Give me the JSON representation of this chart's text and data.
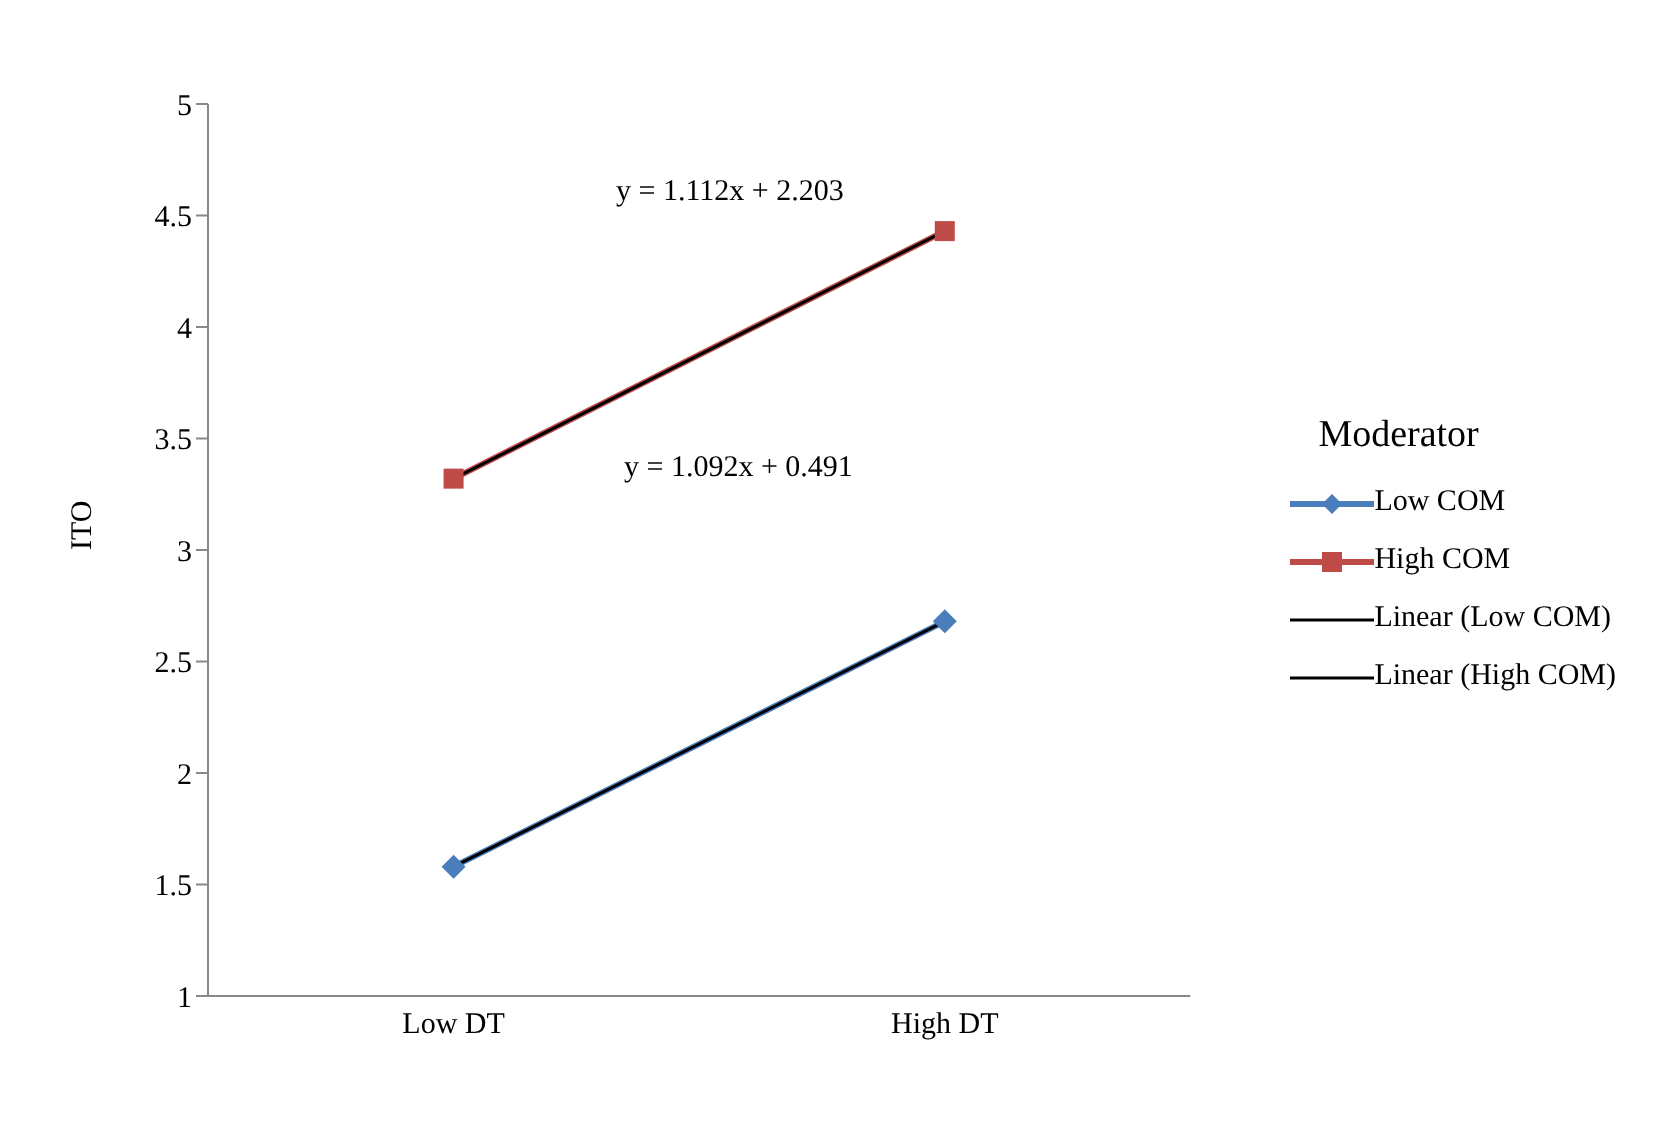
{
  "chart_data": {
    "type": "line",
    "ylabel": "ITO",
    "legend_title": "Moderator",
    "categories": [
      "Low DT",
      "High DT"
    ],
    "series": [
      {
        "name": "Low COM",
        "color": "#4a7ebb",
        "values": [
          1.58,
          2.68
        ],
        "marker": "diamond"
      },
      {
        "name": "High COM",
        "color": "#be4b48",
        "values": [
          3.32,
          4.43
        ],
        "marker": "square"
      },
      {
        "name": "Linear (Low COM)",
        "color": "#000000",
        "values": [
          1.58,
          2.68
        ],
        "marker": "none"
      },
      {
        "name": "Linear (High COM)",
        "color": "#000000",
        "values": [
          3.32,
          4.43
        ],
        "marker": "none"
      }
    ],
    "ylim": [
      1,
      5
    ],
    "yticks": [
      1,
      1.5,
      2,
      2.5,
      3,
      3.5,
      4,
      4.5,
      5
    ],
    "grid": false,
    "legend": "right",
    "line_style": "solid",
    "annotations": [
      "y = 1.112x + 2.203",
      "y = 1.092x + 0.491"
    ]
  }
}
